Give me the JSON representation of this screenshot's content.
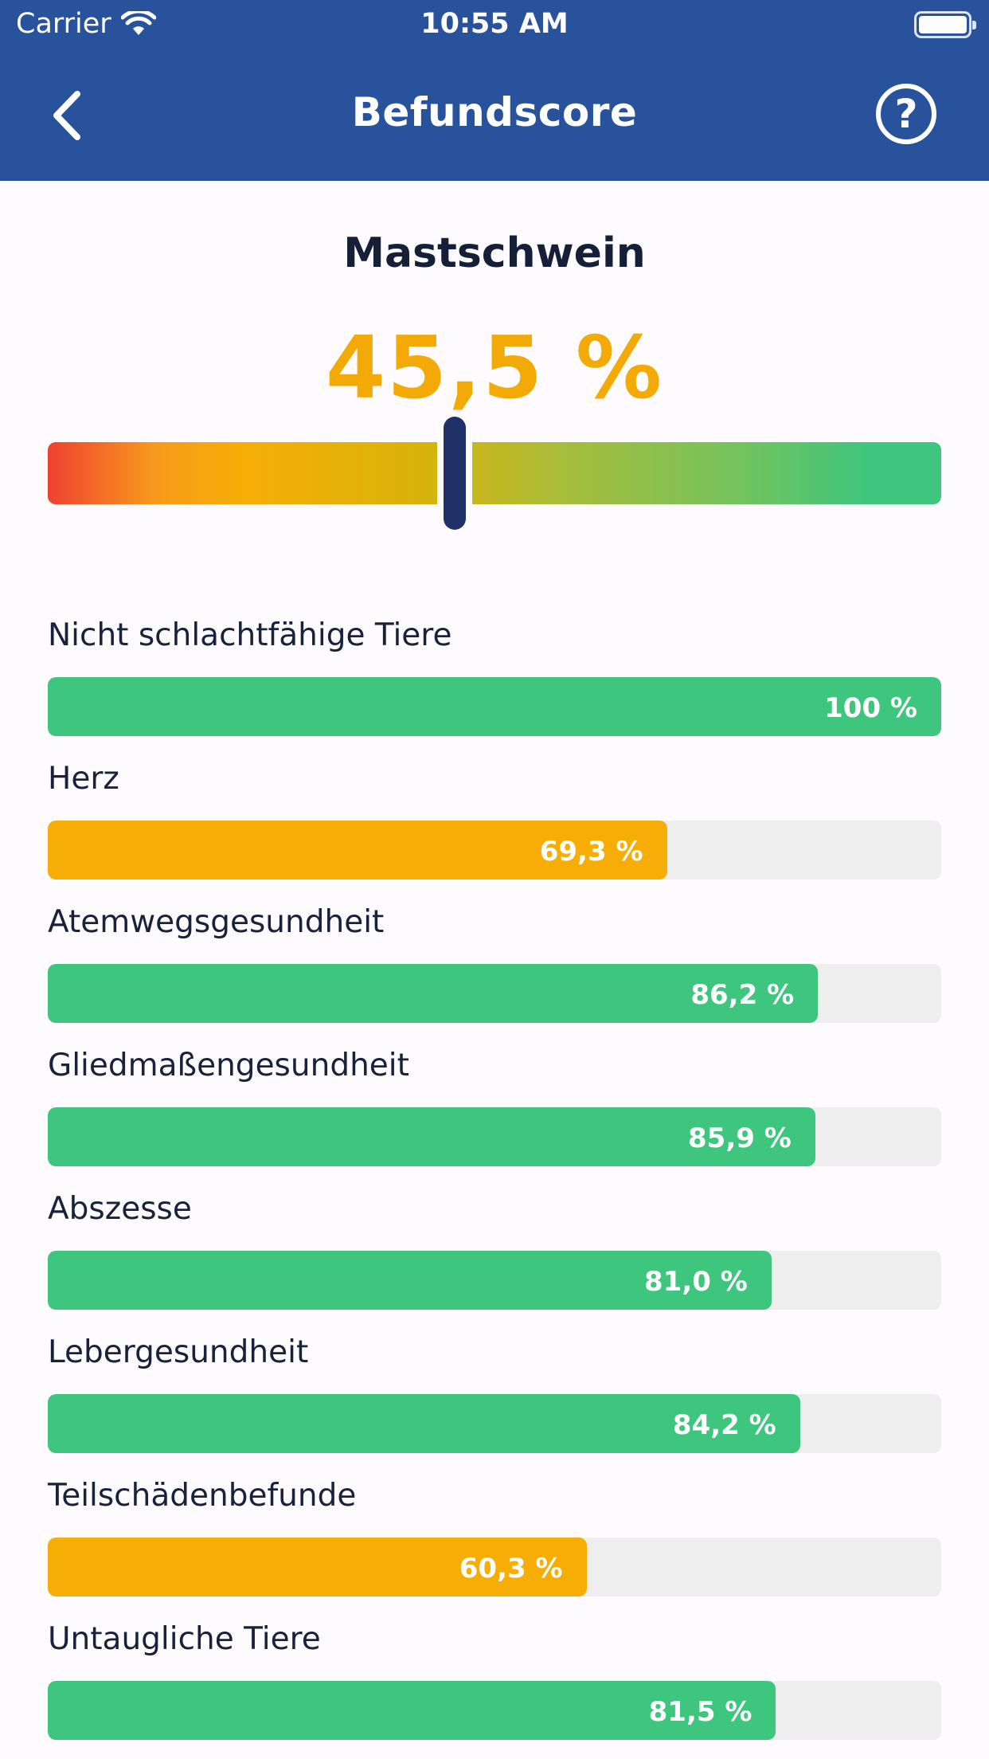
{
  "status": {
    "carrier": "Carrier",
    "time": "10:55 AM"
  },
  "nav": {
    "title": "Befundscore",
    "back_icon": "chevron-left-icon",
    "help_icon": "question-circle-icon",
    "help_glyph": "?"
  },
  "summary": {
    "subject": "Mastschwein",
    "score_text": "45,5 %",
    "score_value": 45.5
  },
  "colors": {
    "header": "#29529c",
    "good": "#3ec57e",
    "warn": "#f6ae06",
    "marker": "#1f3167"
  },
  "metrics": [
    {
      "label": "Nicht schlachtfähige Tiere",
      "value_text": "100 %",
      "value": 100,
      "status": "good"
    },
    {
      "label": "Herz",
      "value_text": "69,3 %",
      "value": 69.3,
      "status": "warn"
    },
    {
      "label": "Atemwegsgesundheit",
      "value_text": "86,2 %",
      "value": 86.2,
      "status": "good"
    },
    {
      "label": "Gliedmaßengesundheit",
      "value_text": "85,9 %",
      "value": 85.9,
      "status": "good"
    },
    {
      "label": "Abszesse",
      "value_text": "81,0 %",
      "value": 81.0,
      "status": "good"
    },
    {
      "label": "Lebergesundheit",
      "value_text": "84,2 %",
      "value": 84.2,
      "status": "good"
    },
    {
      "label": "Teilschädenbefunde",
      "value_text": "60,3 %",
      "value": 60.3,
      "status": "warn"
    },
    {
      "label": "Untaugliche Tiere",
      "value_text": "81,5 %",
      "value": 81.5,
      "status": "good"
    }
  ]
}
